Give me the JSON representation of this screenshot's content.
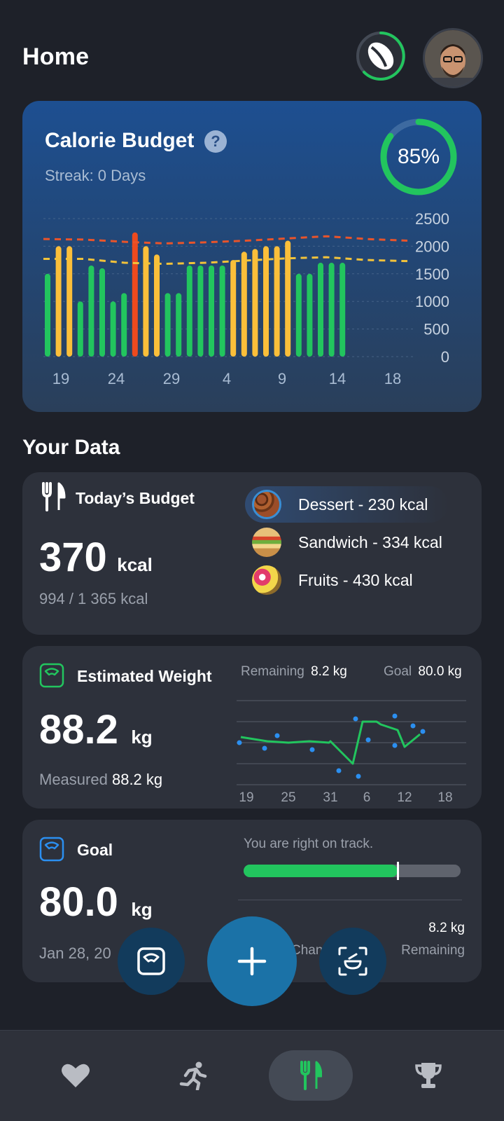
{
  "header": {
    "title": "Home"
  },
  "calorie_card": {
    "title": "Calorie Budget",
    "help": "?",
    "streak": "Streak: 0 Days",
    "percent_label": "85%",
    "percent_value": 0.85
  },
  "chart_data": {
    "type": "bar",
    "title": "",
    "x_tick_labels": [
      "19",
      "24",
      "29",
      "4",
      "9",
      "14",
      "18"
    ],
    "y_tick_labels": [
      "2500",
      "2000",
      "1500",
      "1000",
      "500",
      "0"
    ],
    "ylim": [
      0,
      2500
    ],
    "values": [
      1500,
      2000,
      2000,
      1000,
      1650,
      1600,
      1000,
      1150,
      2250,
      2000,
      1850,
      1150,
      1150,
      1650,
      1650,
      1650,
      1650,
      1750,
      1900,
      1950,
      2000,
      2000,
      2100,
      1500,
      1500,
      1700,
      1700,
      1700
    ],
    "bar_status": [
      "green",
      "yellow",
      "yellow",
      "green",
      "green",
      "green",
      "green",
      "green",
      "red",
      "yellow",
      "yellow",
      "green",
      "green",
      "green",
      "green",
      "green",
      "green",
      "yellow",
      "yellow",
      "yellow",
      "yellow",
      "yellow",
      "yellow",
      "green",
      "green",
      "green",
      "green",
      "green"
    ],
    "reference_lines": [
      {
        "name": "upper",
        "color": "#e8542b",
        "values": [
          2130,
          2120,
          2080,
          2050,
          2070,
          2100,
          2140,
          2180,
          2130,
          2100
        ]
      },
      {
        "name": "lower",
        "color": "#f2c23a",
        "values": [
          1770,
          1770,
          1700,
          1680,
          1700,
          1740,
          1780,
          1800,
          1750,
          1730
        ]
      }
    ],
    "colors": {
      "green": "#22c55e",
      "yellow": "#fbbf3a",
      "red": "#ee4a1e"
    }
  },
  "section": {
    "title": "Your Data"
  },
  "budget_card": {
    "label": "Today’s Budget",
    "value": "370",
    "unit": "kcal",
    "sub": "994 / 1 365 kcal",
    "foods": [
      {
        "name": "Dessert - 230 kcal"
      },
      {
        "name": "Sandwich - 334 kcal"
      },
      {
        "name": "Fruits - 430 kcal"
      }
    ]
  },
  "weight_card": {
    "label": "Estimated Weight",
    "value": "88.2",
    "unit": "kg",
    "measured_label": "Measured",
    "measured_value": "88.2 kg",
    "remaining_label": "Remaining",
    "remaining_value": "8.2 kg",
    "goal_label": "Goal",
    "goal_value": "80.0 kg",
    "x_ticks": [
      "19",
      "25",
      "31",
      "6",
      "12",
      "18"
    ]
  },
  "goal_card": {
    "label": "Goal",
    "value": "80.0",
    "unit": "kg",
    "date": "Jan 28, 20",
    "track_text": "You are right on track.",
    "progress": 0.71,
    "remaining_value": "8.2 kg",
    "remaining_label": "Remaining",
    "change_label": "Chan"
  },
  "colors": {
    "accent": "#22c55e",
    "blue": "#1b72a7",
    "card": "#2d313b"
  }
}
